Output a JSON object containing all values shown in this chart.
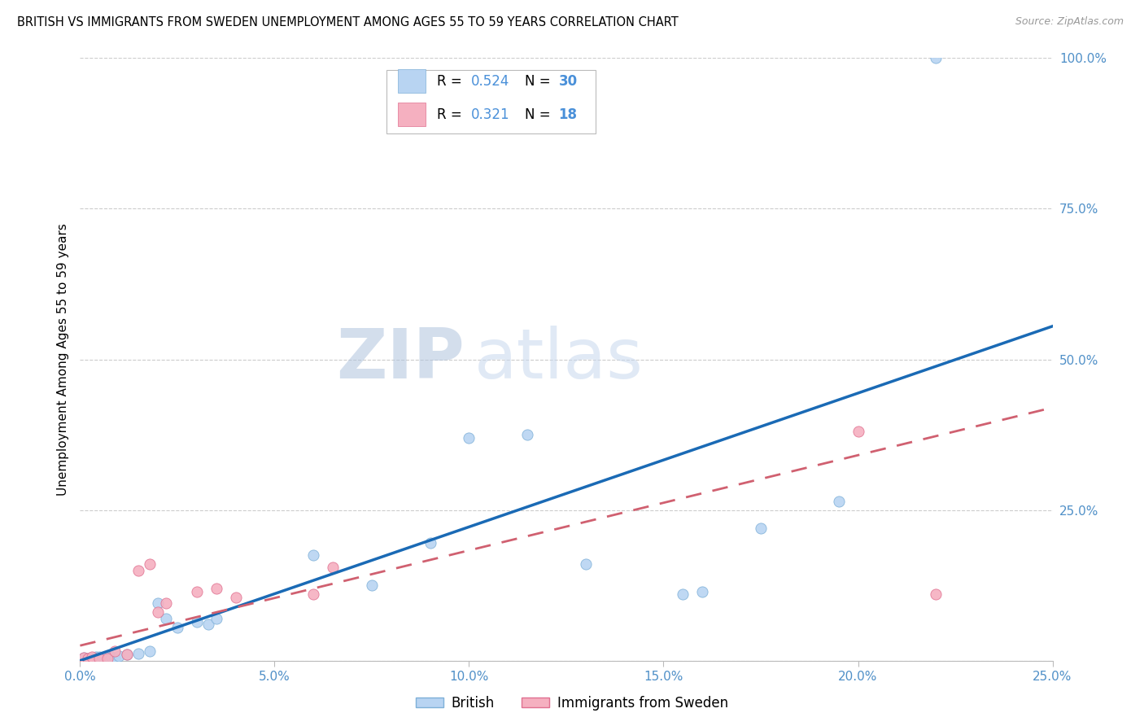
{
  "title": "BRITISH VS IMMIGRANTS FROM SWEDEN UNEMPLOYMENT AMONG AGES 55 TO 59 YEARS CORRELATION CHART",
  "source": "Source: ZipAtlas.com",
  "ylabel": "Unemployment Among Ages 55 to 59 years",
  "x_tick_labels": [
    "0.0%",
    "5.0%",
    "10.0%",
    "15.0%",
    "20.0%",
    "25.0%"
  ],
  "x_tick_values": [
    0.0,
    0.05,
    0.1,
    0.15,
    0.2,
    0.25
  ],
  "y_tick_labels": [
    "",
    "25.0%",
    "50.0%",
    "75.0%",
    "100.0%"
  ],
  "y_tick_values": [
    0.0,
    0.25,
    0.5,
    0.75,
    1.0
  ],
  "xlim": [
    0.0,
    0.25
  ],
  "ylim": [
    0.0,
    1.0
  ],
  "british_fill": "#b8d4f2",
  "british_edge": "#7eb0d8",
  "swedish_fill": "#f5b0c0",
  "swedish_edge": "#e07090",
  "line_british": "#1a6ab5",
  "line_swedish": "#d06070",
  "r_british": "0.524",
  "n_british": "30",
  "r_swedish": "0.321",
  "n_swedish": "18",
  "watermark_zip": "ZIP",
  "watermark_atlas": "atlas",
  "watermark_color": "#c8d8ee",
  "british_x": [
    0.001,
    0.002,
    0.003,
    0.004,
    0.005,
    0.006,
    0.007,
    0.008,
    0.009,
    0.01,
    0.012,
    0.015,
    0.018,
    0.02,
    0.022,
    0.025,
    0.03,
    0.033,
    0.035,
    0.06,
    0.075,
    0.09,
    0.1,
    0.115,
    0.13,
    0.155,
    0.16,
    0.175,
    0.195,
    0.22
  ],
  "british_y": [
    0.005,
    0.003,
    0.004,
    0.006,
    0.007,
    0.005,
    0.008,
    0.006,
    0.003,
    0.008,
    0.01,
    0.012,
    0.016,
    0.095,
    0.07,
    0.055,
    0.065,
    0.06,
    0.07,
    0.175,
    0.125,
    0.195,
    0.37,
    0.375,
    0.16,
    0.11,
    0.115,
    0.22,
    0.265,
    1.0
  ],
  "swedish_x": [
    0.001,
    0.002,
    0.003,
    0.005,
    0.007,
    0.009,
    0.012,
    0.015,
    0.018,
    0.02,
    0.022,
    0.03,
    0.035,
    0.04,
    0.06,
    0.065,
    0.2,
    0.22
  ],
  "swedish_y": [
    0.005,
    0.003,
    0.006,
    0.004,
    0.003,
    0.016,
    0.01,
    0.15,
    0.16,
    0.08,
    0.095,
    0.115,
    0.12,
    0.105,
    0.11,
    0.155,
    0.38,
    0.11
  ],
  "dot_size": 90,
  "bg_color": "#ffffff",
  "grid_color": "#cccccc",
  "tick_color": "#5090c8",
  "axis_color": "#cccccc",
  "line_brit_y0": 0.0,
  "line_brit_y1": 0.555,
  "line_swe_y0": 0.025,
  "line_swe_y1": 0.42
}
